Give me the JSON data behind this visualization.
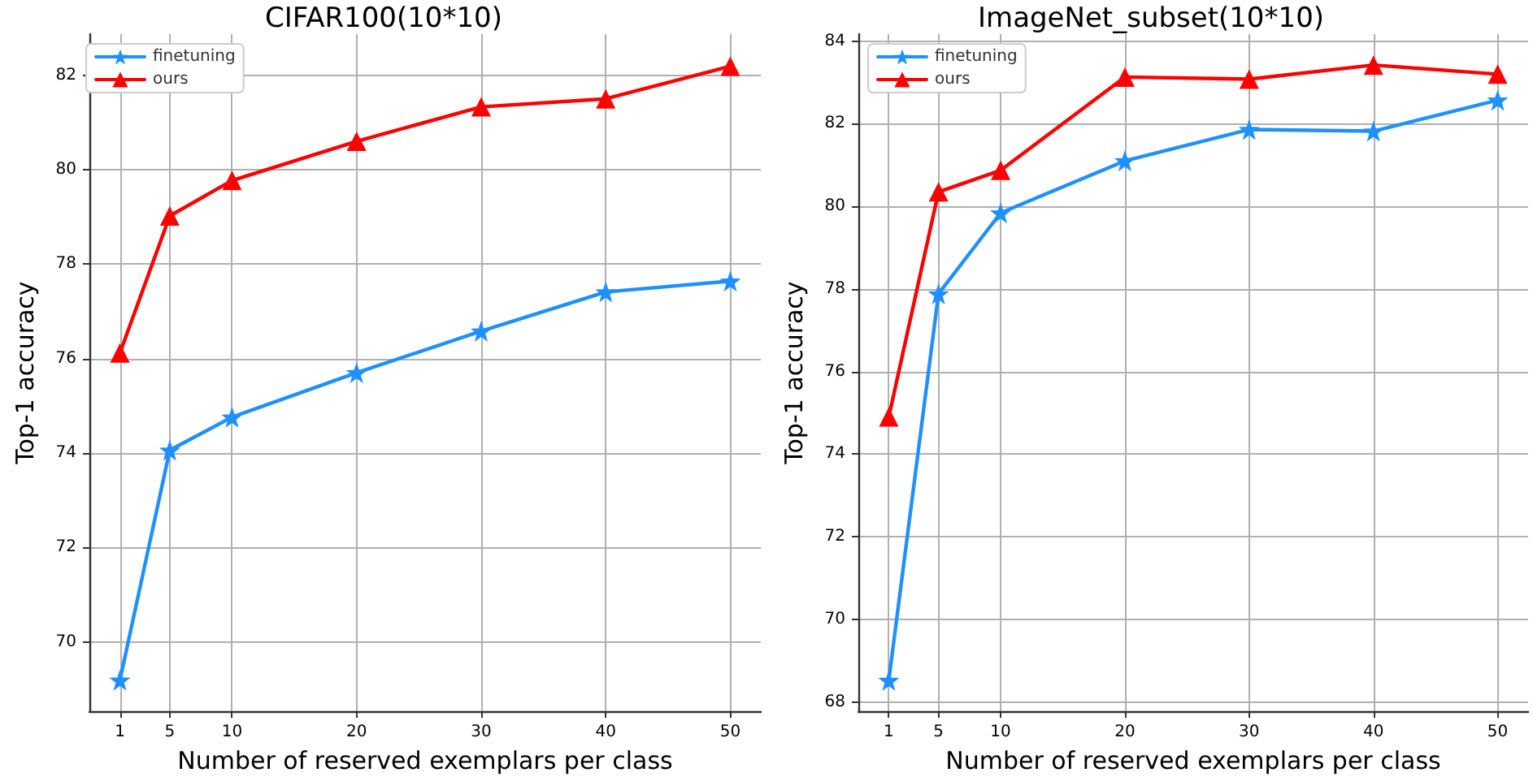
{
  "chart_data": [
    {
      "type": "line",
      "title": "CIFAR100(10*10)",
      "xlabel": "Number of reserved exemplars per class",
      "ylabel": "Top-1 accuracy",
      "x": [
        1,
        5,
        10,
        20,
        30,
        40,
        50
      ],
      "series": [
        {
          "name": "finetuning",
          "color": "#1e90ff",
          "marker": "star",
          "values": [
            69.19,
            74.06,
            74.76,
            75.7,
            76.58,
            77.41,
            77.64
          ]
        },
        {
          "name": "ours",
          "color": "#ff0000",
          "marker": "triangle",
          "values": [
            76.12,
            79.02,
            79.77,
            80.6,
            81.33,
            81.5,
            82.19
          ]
        }
      ],
      "xlim": [
        -1.45,
        52.45
      ],
      "xticks": [
        1,
        5,
        10,
        20,
        30,
        40,
        50
      ],
      "ylim": [
        68.53,
        82.87
      ],
      "yticks": [
        70,
        72,
        74,
        76,
        78,
        80,
        82
      ],
      "grid": true,
      "legend": "top left",
      "line_style": "solid"
    },
    {
      "type": "line",
      "title": "ImageNet_subset(10*10)",
      "xlabel": "Number of reserved exemplars per class",
      "ylabel": "Top-1 accuracy",
      "x": [
        1,
        5,
        10,
        20,
        30,
        40,
        50
      ],
      "series": [
        {
          "name": "finetuning",
          "color": "#1e90ff",
          "marker": "star",
          "values": [
            68.52,
            77.88,
            79.84,
            81.1,
            81.86,
            81.82,
            82.57
          ]
        },
        {
          "name": "ours",
          "color": "#ff0000",
          "marker": "triangle",
          "values": [
            74.9,
            80.35,
            80.87,
            83.13,
            83.08,
            83.42,
            83.2
          ]
        }
      ],
      "xlim": [
        -1.45,
        52.45
      ],
      "xticks": [
        1,
        5,
        10,
        20,
        30,
        40,
        50
      ],
      "ylim": [
        67.77,
        84.17
      ],
      "yticks": [
        68,
        70,
        72,
        74,
        76,
        78,
        80,
        82,
        84
      ],
      "grid": true,
      "legend": "top left",
      "line_style": "solid"
    }
  ]
}
